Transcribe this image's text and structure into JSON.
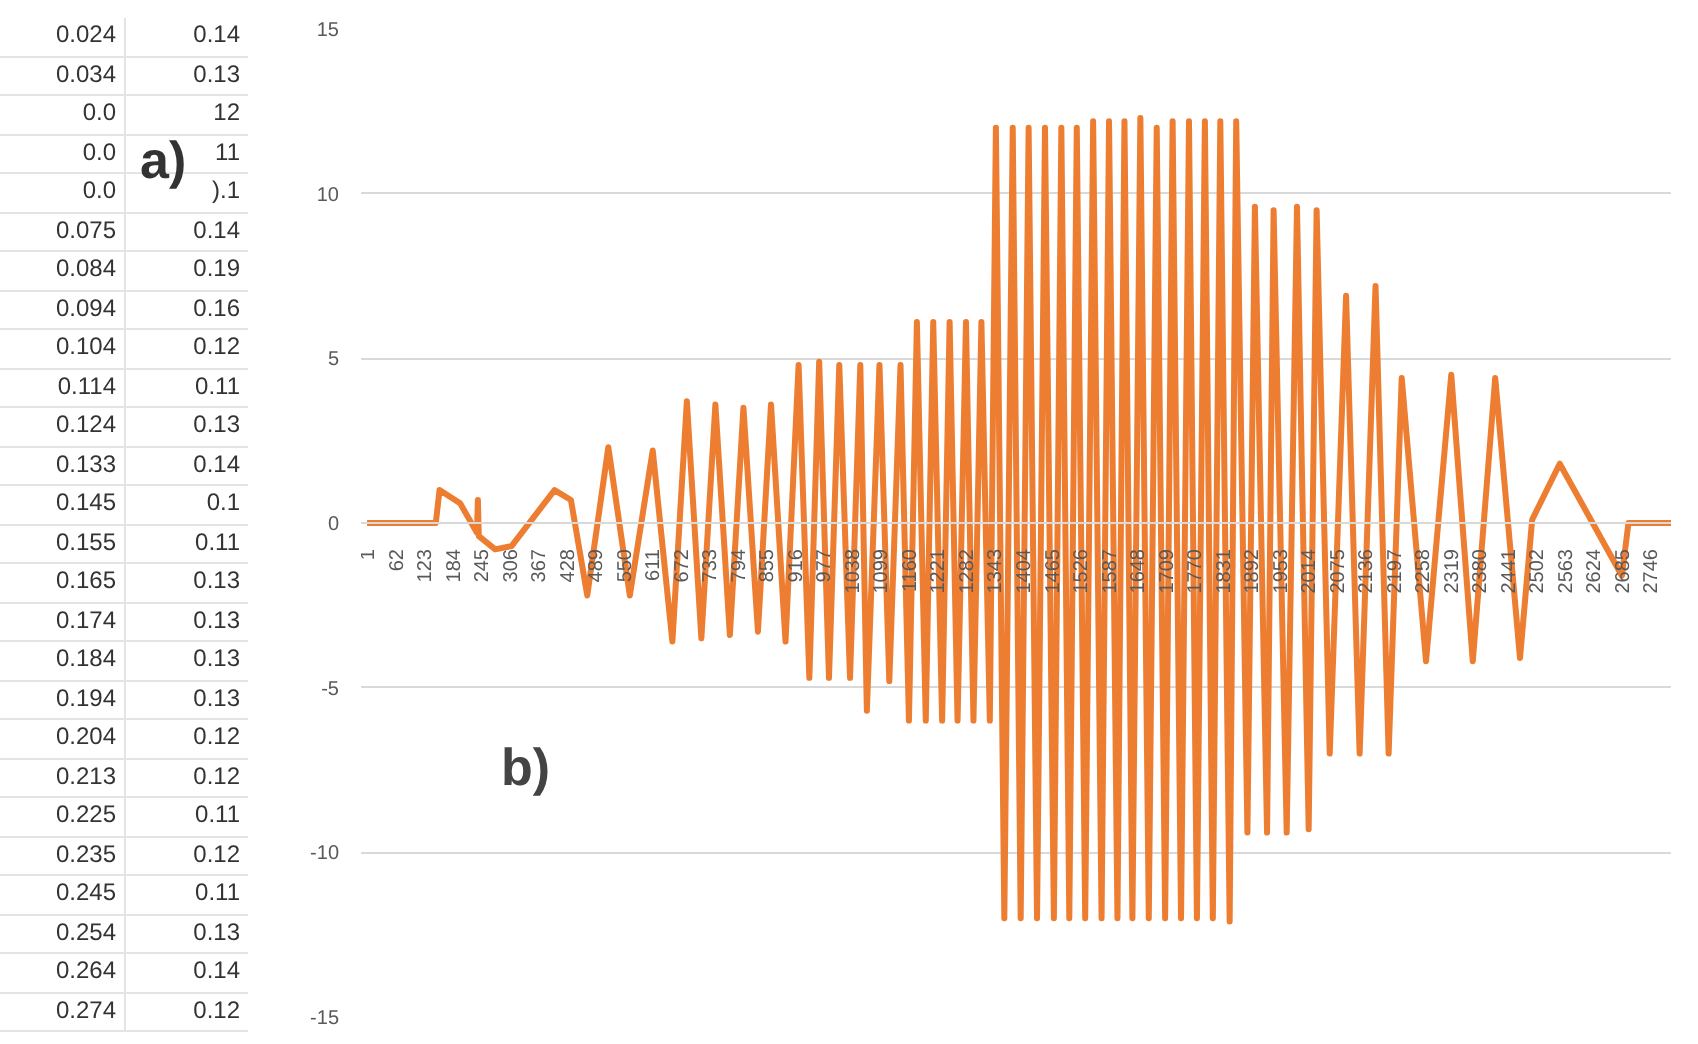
{
  "chart_data": {
    "type": "line",
    "x": [
      1,
      148,
      156,
      200,
      236,
      238,
      240,
      275,
      310,
      402,
      437,
      472,
      517,
      563,
      612,
      654,
      685,
      716,
      746,
      777,
      806,
      837,
      865,
      896,
      924,
      947,
      968,
      989,
      1011,
      1034,
      1056,
      1070,
      1097,
      1118,
      1142,
      1160,
      1177,
      1196,
      1212,
      1231,
      1247,
      1264,
      1282,
      1298,
      1315,
      1333,
      1346,
      1364,
      1382,
      1399,
      1416,
      1434,
      1451,
      1470,
      1486,
      1503,
      1519,
      1537,
      1554,
      1572,
      1588,
      1606,
      1621,
      1638,
      1655,
      1673,
      1690,
      1708,
      1724,
      1742,
      1759,
      1776,
      1793,
      1810,
      1826,
      1846,
      1860,
      1884,
      1900,
      1926,
      1940,
      1968,
      1990,
      2015,
      2032,
      2060,
      2095,
      2124,
      2158,
      2186,
      2214,
      2266,
      2320,
      2366,
      2414,
      2467,
      2493,
      2552,
      2685,
      2699,
      2790
    ],
    "series": [
      {
        "color": "#ed7d31",
        "values": [
          0,
          0,
          1.0,
          0.6,
          -0.3,
          0.7,
          -0.4,
          -0.8,
          -0.7,
          1.0,
          0.7,
          -2.2,
          2.3,
          -2.2,
          2.2,
          -3.6,
          3.7,
          -3.5,
          3.6,
          -3.4,
          3.5,
          -3.3,
          3.6,
          -3.6,
          4.8,
          -4.7,
          4.9,
          -4.7,
          4.8,
          -4.7,
          4.8,
          -5.7,
          4.8,
          -4.8,
          4.8,
          -6.0,
          6.1,
          -6.0,
          6.1,
          -6.0,
          6.1,
          -6.0,
          6.1,
          -6.0,
          6.1,
          -6.0,
          12.0,
          -12.0,
          12.0,
          -12.0,
          12.0,
          -12.0,
          12.0,
          -12.0,
          12.0,
          -12.0,
          12.0,
          -12.0,
          12.2,
          -12.0,
          12.2,
          -12.0,
          12.2,
          -12.0,
          12.3,
          -12.0,
          12.0,
          -12.0,
          12.2,
          -12.0,
          12.2,
          -12.0,
          12.2,
          -12.0,
          12.2,
          -12.1,
          12.2,
          -9.4,
          9.6,
          -9.4,
          9.5,
          -9.4,
          9.6,
          -9.3,
          9.5,
          -7.0,
          6.9,
          -7.0,
          7.2,
          -7.0,
          4.4,
          -4.2,
          4.5,
          -4.2,
          4.4,
          -4.1,
          0.1,
          1.8,
          -1.6,
          0,
          0
        ]
      }
    ],
    "xlim": [
      -12,
      2790
    ],
    "ylim": [
      -15,
      15
    ],
    "xticks": [
      1,
      62,
      123,
      184,
      245,
      306,
      367,
      428,
      489,
      550,
      611,
      672,
      733,
      794,
      855,
      916,
      977,
      1038,
      1099,
      1160,
      1221,
      1282,
      1343,
      1404,
      1465,
      1526,
      1587,
      1648,
      1709,
      1770,
      1831,
      1892,
      1953,
      2014,
      2075,
      2136,
      2197,
      2258,
      2319,
      2380,
      2441,
      2502,
      2563,
      2624,
      2685,
      2746
    ],
    "yticks": [
      -15,
      -10,
      -5,
      0,
      5,
      10,
      15
    ],
    "grid": "y",
    "annotations": [
      "a)",
      "b)",
      "0.024",
      "0.14",
      "0.034",
      "0.13",
      "0.0",
      "12",
      "0.0",
      "11",
      "0.0",
      ").1",
      "0.075",
      "0.14",
      "0.084",
      "0.19",
      "0.094",
      "0.16",
      "0.104",
      "0.12",
      "0.114",
      "0.11",
      "0.124",
      "0.13",
      "0.133",
      "0.14",
      "0.145",
      "0.1",
      "0.155",
      "0.11",
      "0.165",
      "0.13",
      "0.174",
      "0.13",
      "0.184",
      "0.13",
      "0.194",
      "0.13",
      "0.204",
      "0.12",
      "0.213",
      "0.12",
      "0.225",
      "0.11",
      "0.235",
      "0.12",
      "0.245",
      "0.11",
      "0.254",
      "0.13",
      "0.264",
      "0.14",
      "0.274",
      "0.12"
    ]
  }
}
